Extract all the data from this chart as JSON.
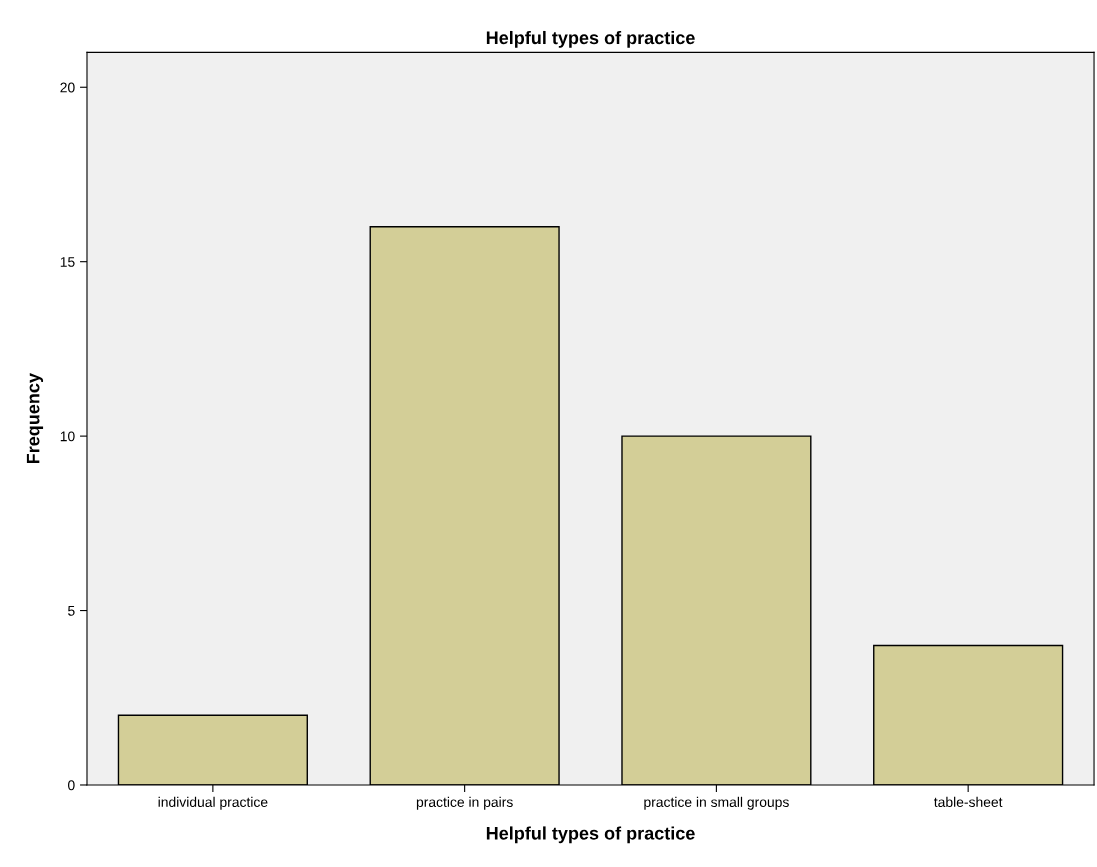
{
  "chart_data": {
    "type": "bar",
    "title": "Helpful types of practice",
    "xlabel": "Helpful types of practice",
    "ylabel": "Frequency",
    "categories": [
      "individual practice",
      "practice in pairs",
      "practice in small groups",
      "table-sheet"
    ],
    "values": [
      2,
      16,
      10,
      4
    ],
    "color": "#d3ce97",
    "ylim": [
      0,
      21
    ],
    "yticks": [
      0,
      5,
      10,
      15,
      20
    ],
    "grid": false,
    "legend": false
  }
}
